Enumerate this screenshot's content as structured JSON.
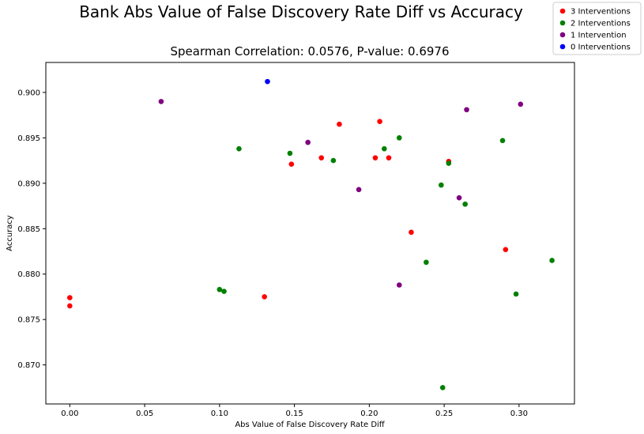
{
  "chart_data": {
    "type": "scatter",
    "title": "Bank Abs Value of False Discovery Rate Diff vs Accuracy",
    "subtitle": "Spearman Correlation: 0.0576, P-value: 0.6976",
    "xlabel": "Abs Value of False Discovery Rate Diff",
    "ylabel": "Accuracy",
    "xlim": [
      -0.016,
      0.337
    ],
    "ylim": [
      0.8657,
      0.9033
    ],
    "x_ticks": [
      "0.00",
      "0.05",
      "0.10",
      "0.15",
      "0.20",
      "0.25",
      "0.30"
    ],
    "x_tick_values": [
      0.0,
      0.05,
      0.1,
      0.15,
      0.2,
      0.25,
      0.3
    ],
    "y_ticks": [
      "0.870",
      "0.875",
      "0.880",
      "0.885",
      "0.890",
      "0.895",
      "0.900"
    ],
    "y_tick_values": [
      0.87,
      0.875,
      0.88,
      0.885,
      0.89,
      0.895,
      0.9
    ],
    "grid": false,
    "legend_position": "top-right",
    "series": [
      {
        "name": "3 Interventions",
        "color": "#ff0000",
        "points": [
          {
            "x": 0.0,
            "y": 0.8774
          },
          {
            "x": 0.0,
            "y": 0.8765
          },
          {
            "x": 0.13,
            "y": 0.8775
          },
          {
            "x": 0.148,
            "y": 0.8921
          },
          {
            "x": 0.168,
            "y": 0.8928
          },
          {
            "x": 0.18,
            "y": 0.8965
          },
          {
            "x": 0.204,
            "y": 0.8928
          },
          {
            "x": 0.207,
            "y": 0.8968
          },
          {
            "x": 0.213,
            "y": 0.8928
          },
          {
            "x": 0.228,
            "y": 0.8846
          },
          {
            "x": 0.253,
            "y": 0.8924
          },
          {
            "x": 0.291,
            "y": 0.8827
          }
        ]
      },
      {
        "name": "2 Interventions",
        "color": "#008000",
        "points": [
          {
            "x": 0.1,
            "y": 0.8783
          },
          {
            "x": 0.103,
            "y": 0.8781
          },
          {
            "x": 0.113,
            "y": 0.8938
          },
          {
            "x": 0.147,
            "y": 0.8933
          },
          {
            "x": 0.176,
            "y": 0.8925
          },
          {
            "x": 0.21,
            "y": 0.8938
          },
          {
            "x": 0.22,
            "y": 0.895
          },
          {
            "x": 0.238,
            "y": 0.8813
          },
          {
            "x": 0.248,
            "y": 0.8898
          },
          {
            "x": 0.249,
            "y": 0.8675
          },
          {
            "x": 0.253,
            "y": 0.8922
          },
          {
            "x": 0.264,
            "y": 0.8877
          },
          {
            "x": 0.289,
            "y": 0.8947
          },
          {
            "x": 0.298,
            "y": 0.8778
          },
          {
            "x": 0.322,
            "y": 0.8815
          }
        ]
      },
      {
        "name": "1 Intervention",
        "color": "#800080",
        "points": [
          {
            "x": 0.061,
            "y": 0.899
          },
          {
            "x": 0.159,
            "y": 0.8945
          },
          {
            "x": 0.193,
            "y": 0.8893
          },
          {
            "x": 0.22,
            "y": 0.8788
          },
          {
            "x": 0.26,
            "y": 0.8884
          },
          {
            "x": 0.265,
            "y": 0.8981
          },
          {
            "x": 0.301,
            "y": 0.8987
          }
        ]
      },
      {
        "name": "0 Interventions",
        "color": "#0000ff",
        "points": [
          {
            "x": 0.132,
            "y": 0.9012
          }
        ]
      }
    ]
  }
}
